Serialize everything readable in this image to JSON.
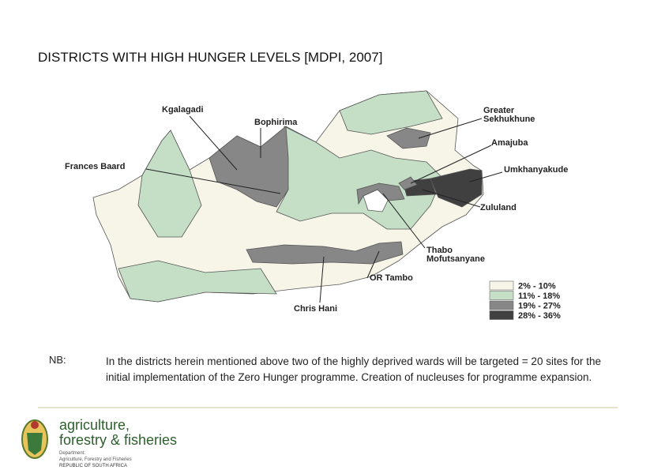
{
  "title": "DISTRICTS WITH HIGH HUNGER LEVELS [MDPI, 2007]",
  "map": {
    "labels": [
      {
        "lines": [
          "Kgalagadi"
        ]
      },
      {
        "lines": [
          "Bophirima"
        ]
      },
      {
        "lines": [
          "Frances Baard"
        ]
      },
      {
        "lines": [
          "Greater",
          "Sekhukhune"
        ]
      },
      {
        "lines": [
          "Amajuba"
        ]
      },
      {
        "lines": [
          "Umkhanyakude"
        ]
      },
      {
        "lines": [
          "Zululand"
        ]
      },
      {
        "lines": [
          "Thabo",
          "Mofutsanyane"
        ]
      },
      {
        "lines": [
          "OR Tambo"
        ]
      },
      {
        "lines": [
          "Chris Hani"
        ]
      }
    ],
    "legend": [
      {
        "label": "2% - 10%",
        "color": "#f7f5e8"
      },
      {
        "label": "11% - 18%",
        "color": "#c4dfc6"
      },
      {
        "label": "19% - 27%",
        "color": "#878787"
      },
      {
        "label": "28% - 36%",
        "color": "#404040"
      }
    ]
  },
  "note": {
    "label": "NB:",
    "text": "In the districts herein mentioned above two of the highly deprived wards will be targeted = 20 sites for the initial implementation of the Zero Hunger programme. Creation of nucleuses for programme expansion."
  },
  "logo": {
    "line1": "agriculture,",
    "line2": "forestry & fisheries",
    "dept": "Department:",
    "dept_name": "Agriculture, Forestry and Fisheries",
    "country": "REPUBLIC OF SOUTH AFRICA"
  }
}
